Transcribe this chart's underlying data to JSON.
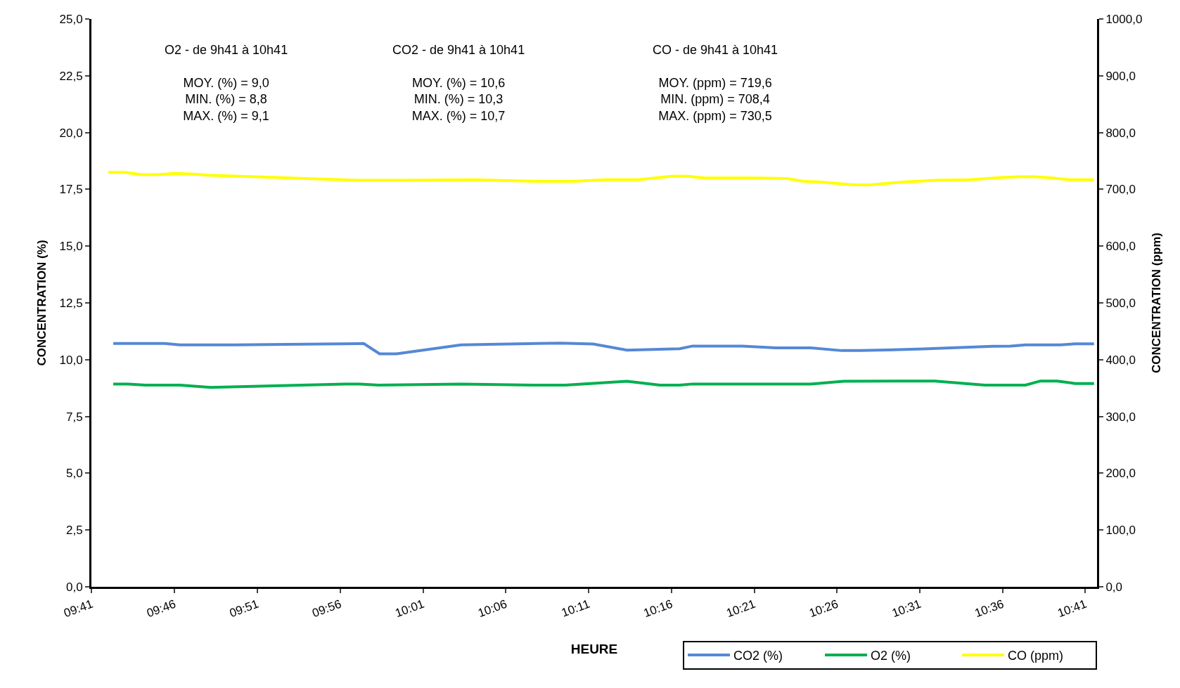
{
  "chart_data": {
    "type": "line",
    "xlabel": "HEURE",
    "ylabel": "CONCENTRATION (%)",
    "y2label": "CONCENTRATION (ppm)",
    "annotations": [
      "O2 - de 9h41 à 10h41\n\nMOY. (%) = 9,0\nMIN. (%) = 8,8\nMAX. (%) = 9,1",
      "CO2 - de 9h41 à 10h41\n\nMOY. (%) = 10,6\nMIN. (%) = 10,3\nMAX. (%) = 10,7",
      "CO - de 9h41 à 10h41\n\nMOY. (ppm) = 719,6\nMIN. (ppm) = 708,4\nMAX. (ppm) = 730,5"
    ],
    "series": [
      {
        "name": "CO2 (%)",
        "color": "#5588d6",
        "x": [
          9.705,
          9.757,
          9.772,
          9.827,
          9.957,
          9.973,
          9.99,
          10.055,
          10.155,
          10.188,
          10.222,
          10.275,
          10.288,
          10.338,
          10.372,
          10.407,
          10.438,
          10.457,
          10.52,
          10.59,
          10.608,
          10.623,
          10.658,
          10.673,
          10.692
        ],
        "values": [
          10.71,
          10.71,
          10.65,
          10.65,
          10.71,
          10.26,
          10.26,
          10.65,
          10.73,
          10.69,
          10.42,
          10.48,
          10.6,
          10.6,
          10.52,
          10.52,
          10.4,
          10.4,
          10.47,
          10.59,
          10.6,
          10.65,
          10.65,
          10.7,
          10.7
        ]
      },
      {
        "name": "O2 (%)",
        "color": "#00b050",
        "x": [
          9.705,
          9.72,
          9.737,
          9.772,
          9.803,
          9.938,
          9.953,
          9.972,
          10.055,
          10.127,
          10.16,
          10.222,
          10.255,
          10.275,
          10.288,
          10.407,
          10.44,
          10.532,
          10.582,
          10.623,
          10.638,
          10.655,
          10.673,
          10.692
        ],
        "values": [
          8.93,
          8.93,
          8.88,
          8.88,
          8.78,
          8.93,
          8.93,
          8.88,
          8.93,
          8.88,
          8.88,
          9.05,
          8.88,
          8.88,
          8.93,
          8.93,
          9.05,
          9.06,
          8.88,
          8.88,
          9.06,
          9.06,
          8.95,
          8.95
        ]
      },
      {
        "name": "CO (ppm)",
        "color": "#ffff00",
        "axis": "y2",
        "x": [
          9.7,
          9.717,
          9.733,
          9.75,
          9.767,
          9.783,
          9.8,
          9.95,
          10.0,
          10.067,
          10.133,
          10.167,
          10.2,
          10.233,
          10.267,
          10.283,
          10.3,
          10.35,
          10.383,
          10.4,
          10.417,
          10.45,
          10.467,
          10.5,
          10.533,
          10.567,
          10.6,
          10.617,
          10.633,
          10.65,
          10.667,
          10.692
        ],
        "values": [
          730,
          730,
          726,
          726,
          728,
          727,
          725,
          716,
          716,
          717,
          714,
          714,
          717,
          717,
          723,
          723,
          720,
          720,
          719,
          714,
          713,
          708,
          708,
          713,
          716,
          717,
          721,
          722,
          722,
          720,
          717,
          717
        ]
      }
    ],
    "xlim": [
      9.683,
      10.695
    ],
    "xticks": [
      {
        "value": 9.6833,
        "label": "09:41"
      },
      {
        "value": 9.7667,
        "label": "09:46"
      },
      {
        "value": 9.85,
        "label": "09:51"
      },
      {
        "value": 9.9333,
        "label": "09:56"
      },
      {
        "value": 10.0167,
        "label": "10:01"
      },
      {
        "value": 10.1,
        "label": "10:06"
      },
      {
        "value": 10.1833,
        "label": "10:11"
      },
      {
        "value": 10.2667,
        "label": "10:16"
      },
      {
        "value": 10.35,
        "label": "10:21"
      },
      {
        "value": 10.4333,
        "label": "10:26"
      },
      {
        "value": 10.5167,
        "label": "10:31"
      },
      {
        "value": 10.6,
        "label": "10:36"
      },
      {
        "value": 10.6833,
        "label": "10:41"
      }
    ],
    "ylim": [
      0,
      25
    ],
    "yticks": [
      {
        "value": 0,
        "label": "0,0"
      },
      {
        "value": 2.5,
        "label": "2,5"
      },
      {
        "value": 5,
        "label": "5,0"
      },
      {
        "value": 7.5,
        "label": "7,5"
      },
      {
        "value": 10,
        "label": "10,0"
      },
      {
        "value": 12.5,
        "label": "12,5"
      },
      {
        "value": 15,
        "label": "15,0"
      },
      {
        "value": 17.5,
        "label": "17,5"
      },
      {
        "value": 20,
        "label": "20,0"
      },
      {
        "value": 22.5,
        "label": "22,5"
      },
      {
        "value": 25,
        "label": "25,0"
      }
    ],
    "y2lim": [
      0,
      1000
    ],
    "y2ticks": [
      {
        "value": 0,
        "label": "0,0"
      },
      {
        "value": 100,
        "label": "100,0"
      },
      {
        "value": 200,
        "label": "200,0"
      },
      {
        "value": 300,
        "label": "300,0"
      },
      {
        "value": 400,
        "label": "400,0"
      },
      {
        "value": 500,
        "label": "500,0"
      },
      {
        "value": 600,
        "label": "600,0"
      },
      {
        "value": 700,
        "label": "700,0"
      },
      {
        "value": 800,
        "label": "800,0"
      },
      {
        "value": 900,
        "label": "900,0"
      },
      {
        "value": 1000,
        "label": "1000,0"
      }
    ],
    "legend": "bottom right",
    "marker": "none",
    "line_style": "solid"
  }
}
